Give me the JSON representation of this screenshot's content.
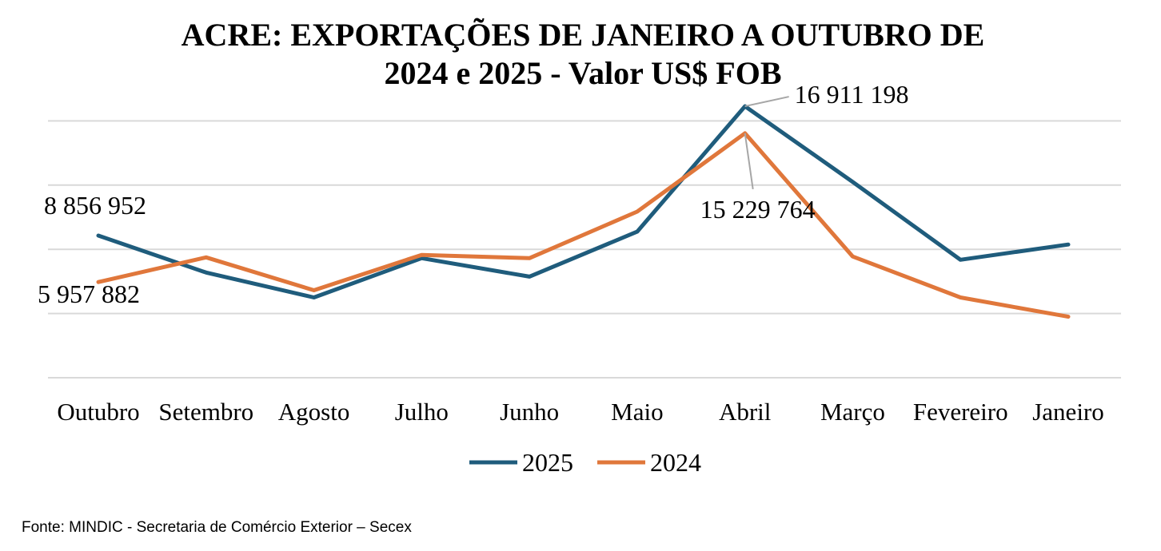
{
  "chart_data": {
    "type": "line",
    "title_lines": [
      "ACRE: EXPORTAÇÕES DE JANEIRO A OUTUBRO DE",
      "2024 e 2025 - Valor US$ FOB"
    ],
    "categories": [
      "Outubro",
      "Setembro",
      "Agosto",
      "Julho",
      "Junho",
      "Maio",
      "Abril",
      "Março",
      "Fevereiro",
      "Janeiro"
    ],
    "series": [
      {
        "name": "2025",
        "color": "#1f5c7c",
        "values": [
          8856952,
          6550000,
          5000000,
          7450000,
          6300000,
          9100000,
          16911198,
          12200000,
          7350000,
          8300000
        ]
      },
      {
        "name": "2024",
        "color": "#e0773b",
        "values": [
          5957882,
          7500000,
          5450000,
          7650000,
          7450000,
          10350000,
          15229764,
          7550000,
          5000000,
          3800000
        ]
      }
    ],
    "ylim": [
      0,
      20000000
    ],
    "grid_values": [
      0,
      4000000,
      8000000,
      12000000,
      16000000
    ],
    "grid": true,
    "y_ticks_visible": false,
    "annotations": [
      {
        "series": "2025",
        "index": 0,
        "text": "8 856 952"
      },
      {
        "series": "2024",
        "index": 0,
        "text": "5 957 882"
      },
      {
        "series": "2025",
        "index": 6,
        "text": "16 911 198"
      },
      {
        "series": "2024",
        "index": 6,
        "text": "15 229 764"
      }
    ],
    "legend_position": "bottom"
  },
  "source": "Fonte: MINDIC - Secretaria de Comércio Exterior – Secex"
}
